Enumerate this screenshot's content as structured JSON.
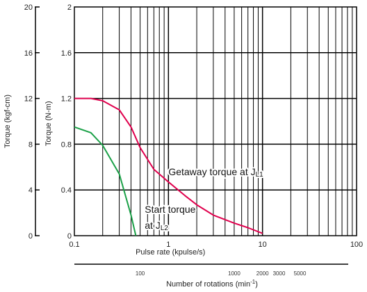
{
  "chart_data": {
    "type": "line",
    "scale": {
      "x": "log",
      "y": "linear"
    },
    "xlim": [
      0.1,
      100
    ],
    "ylim": [
      0,
      2
    ],
    "grid": true,
    "xlabel": "Pulse rate (kpulse/s)",
    "ylabel_right": "Torque (N-m)",
    "ylabel_left": "Torque (kgf-cm)",
    "x_ticks": [
      "0.1",
      "1",
      "10",
      "100"
    ],
    "y_ticks": [
      "0",
      "0.4",
      "0.8",
      "1.2",
      "1.6",
      "2"
    ],
    "y2_ticks": [
      "0",
      "4",
      "8",
      "12",
      "16",
      "20"
    ],
    "secondary_axis": {
      "label": "Number of rotations (min",
      "label_sup": "-1",
      "label_close": ")",
      "ticks": [
        {
          "text": "100",
          "kpps": 0.5
        },
        {
          "text": "1000",
          "kpps": 5
        },
        {
          "text": "2000",
          "kpps": 10
        },
        {
          "text": "3000",
          "kpps": 15
        },
        {
          "text": "5000",
          "kpps": 25
        }
      ]
    },
    "series": [
      {
        "color": "#e0004d",
        "x": [
          0.1,
          0.15,
          0.2,
          0.3,
          0.4,
          0.5,
          0.7,
          1,
          1.5,
          2,
          3,
          5,
          7,
          10
        ],
        "y": [
          1.2,
          1.2,
          1.18,
          1.1,
          0.95,
          0.77,
          0.58,
          0.47,
          0.35,
          0.27,
          0.18,
          0.11,
          0.07,
          0.02
        ]
      },
      {
        "color": "#1aa047",
        "x": [
          0.1,
          0.15,
          0.2,
          0.3,
          0.4,
          0.45
        ],
        "y": [
          0.95,
          0.9,
          0.79,
          0.54,
          0.18,
          0.0
        ]
      }
    ],
    "annotations": [
      {
        "text": "Getaway torque at J",
        "sub": "L1",
        "x": 1.0,
        "y": 0.53
      },
      {
        "text": "Start torque",
        "x": 0.56,
        "y": 0.2
      },
      {
        "text": "at J",
        "sub": "L2",
        "x": 0.56,
        "y": 0.06
      }
    ]
  }
}
